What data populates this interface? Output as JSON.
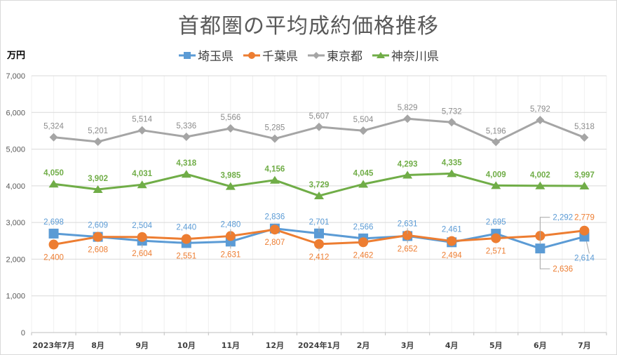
{
  "chart_data": {
    "type": "line",
    "title": "首都圏の平均成約価格推移",
    "ylabel": "万円",
    "xlabel": "",
    "ylim": [
      0,
      7000
    ],
    "yticks": [
      0,
      1000,
      2000,
      3000,
      4000,
      5000,
      6000,
      7000
    ],
    "ytick_labels": [
      "0",
      "1,000",
      "2,000",
      "3,000",
      "4,000",
      "5,000",
      "6,000",
      "7,000"
    ],
    "grid": true,
    "legend_position": "top",
    "categories": [
      "2023年7月",
      "8月",
      "9月",
      "10月",
      "11月",
      "12月",
      "2024年1月",
      "2月",
      "3月",
      "4月",
      "5月",
      "6月",
      "7月"
    ],
    "series": [
      {
        "name": "埼玉県",
        "color": "#5b9bd5",
        "marker": "square",
        "values": [
          2698,
          2609,
          2504,
          2440,
          2480,
          2836,
          2701,
          2566,
          2631,
          2461,
          2695,
          2292,
          2614
        ]
      },
      {
        "name": "千葉県",
        "color": "#ed7d31",
        "marker": "circle",
        "values": [
          2400,
          2608,
          2604,
          2551,
          2631,
          2807,
          2412,
          2462,
          2652,
          2494,
          2571,
          2636,
          2779
        ]
      },
      {
        "name": "東京都",
        "color": "#a5a5a5",
        "marker": "diamond",
        "values": [
          5324,
          5201,
          5514,
          5336,
          5566,
          5285,
          5607,
          5504,
          5829,
          5732,
          5196,
          5792,
          5318
        ]
      },
      {
        "name": "神奈川県",
        "color": "#70ad47",
        "marker": "triangle",
        "values": [
          4050,
          3902,
          4031,
          4318,
          3985,
          4156,
          3729,
          4045,
          4293,
          4335,
          4009,
          4002,
          3997
        ]
      }
    ]
  }
}
